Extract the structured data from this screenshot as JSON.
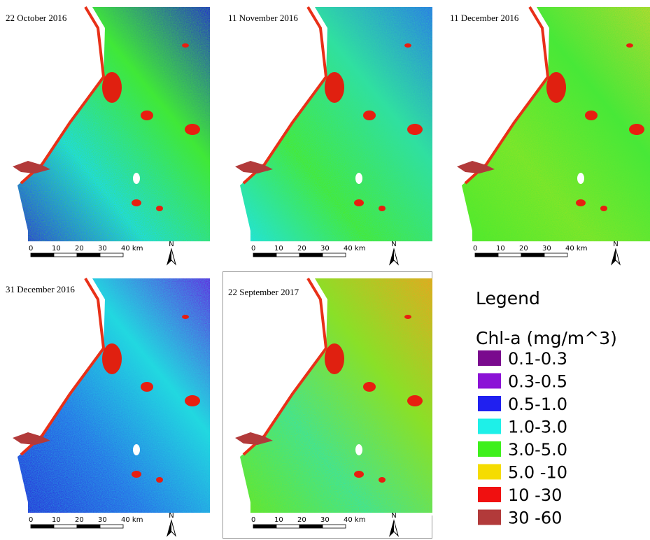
{
  "panels": [
    {
      "date": "22 October 2016"
    },
    {
      "date": "11 November 2016"
    },
    {
      "date": "11 December 2016"
    },
    {
      "date": "31 December 2016"
    },
    {
      "date": "22 September 2017"
    }
  ],
  "scale_bar": {
    "labels": [
      "0",
      "10",
      "20",
      "30",
      "40 km"
    ]
  },
  "north": "N",
  "legend": {
    "title": "Legend",
    "subtitle": "Chl-a (mg/m^3)",
    "items": [
      {
        "label": "0.1-0.3",
        "color": "#7a0a8e"
      },
      {
        "label": "0.3-0.5",
        "color": "#8b12d6"
      },
      {
        "label": "0.5-1.0",
        "color": "#2020f0"
      },
      {
        "label": "1.0-3.0",
        "color": "#1ef0e8"
      },
      {
        "label": "3.0-5.0",
        "color": "#3ef01c"
      },
      {
        "label": "5.0 -10",
        "color": "#f5dc00"
      },
      {
        "label": "10 -30",
        "color": "#f01010"
      },
      {
        "label": "30 -60",
        "color": "#b23a3a"
      }
    ]
  }
}
